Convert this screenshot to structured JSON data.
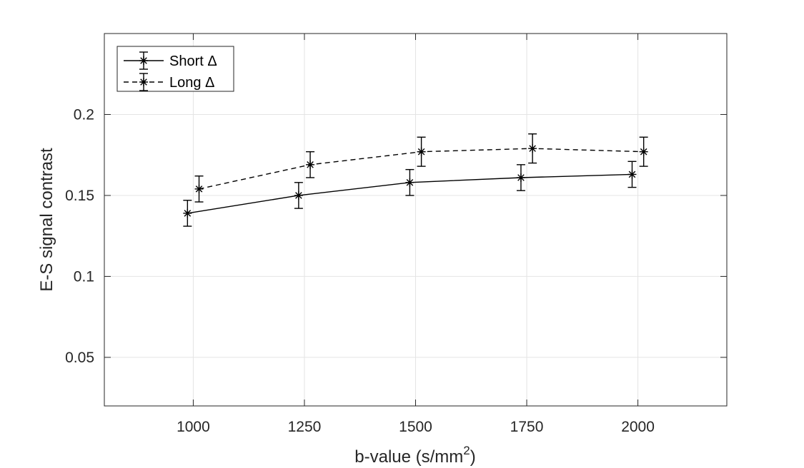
{
  "chart_data": {
    "type": "line",
    "title": "",
    "xlabel": "b-value (s/mm",
    "xlabel_superscript": "2",
    "xlabel_close": ")",
    "ylabel": "E-S signal contrast",
    "xlim": [
      800,
      2200
    ],
    "ylim": [
      0.02,
      0.25
    ],
    "xticks": [
      1000,
      1250,
      1500,
      1750,
      2000
    ],
    "xtick_labels": [
      "1000",
      "1250",
      "1500",
      "1750",
      "2000"
    ],
    "yticks": [
      0.05,
      0.1,
      0.15,
      0.2
    ],
    "ytick_labels": [
      "0.05",
      "0.1",
      "0.15",
      "0.2"
    ],
    "grid": true,
    "legend_position": "top-left",
    "series": [
      {
        "name": "Short Δ",
        "line_style": "solid",
        "marker": "asterisk",
        "color": "#000000",
        "x": [
          987,
          1237,
          1487,
          1737,
          1987
        ],
        "y": [
          0.139,
          0.15,
          0.158,
          0.161,
          0.163
        ],
        "error": [
          0.008,
          0.008,
          0.008,
          0.008,
          0.008
        ]
      },
      {
        "name": "Long Δ",
        "line_style": "dashed",
        "marker": "asterisk",
        "color": "#000000",
        "x": [
          1013,
          1263,
          1513,
          1763,
          2013
        ],
        "y": [
          0.154,
          0.169,
          0.177,
          0.179,
          0.177
        ],
        "error": [
          0.008,
          0.008,
          0.009,
          0.009,
          0.009
        ]
      }
    ]
  }
}
